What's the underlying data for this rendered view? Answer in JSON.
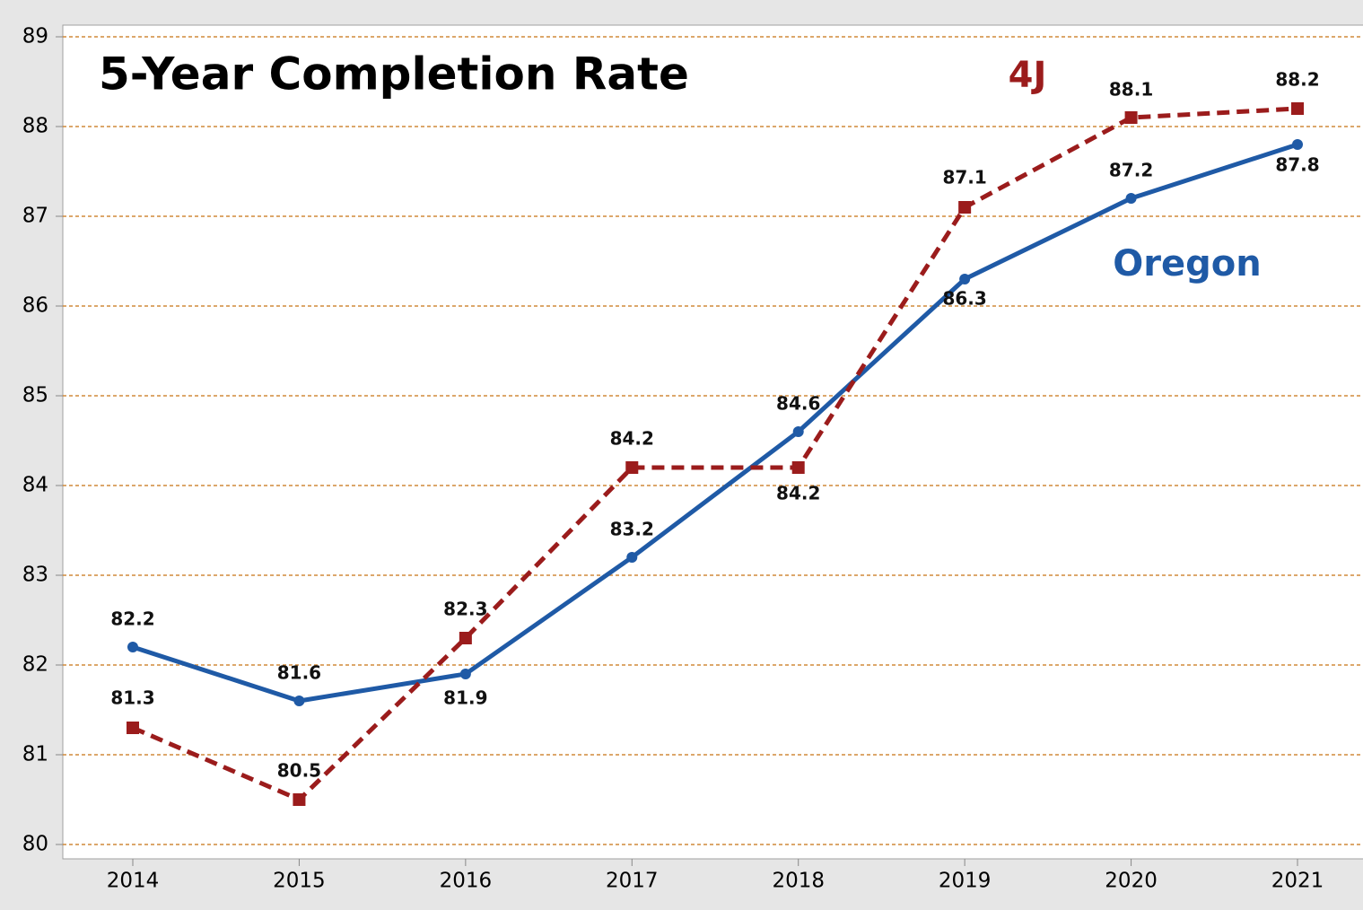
{
  "chart_data": {
    "type": "line",
    "title": "5-Year Completion Rate",
    "categories": [
      "2014",
      "2015",
      "2016",
      "2017",
      "2018",
      "2019",
      "2020",
      "2021"
    ],
    "series": [
      {
        "name": "Oregon",
        "color": "#1f5aa6",
        "values": [
          82.2,
          81.6,
          81.9,
          83.2,
          84.6,
          86.3,
          87.2,
          87.8
        ]
      },
      {
        "name": "4J",
        "color": "#9b1c1c",
        "values": [
          81.3,
          80.5,
          82.3,
          84.2,
          84.2,
          87.1,
          88.1,
          88.2
        ]
      }
    ],
    "ylim": [
      80,
      89
    ],
    "yticks": [
      80,
      81,
      82,
      83,
      84,
      85,
      86,
      87,
      88,
      89
    ],
    "grid": true,
    "grid_color": "#d08a3a"
  }
}
